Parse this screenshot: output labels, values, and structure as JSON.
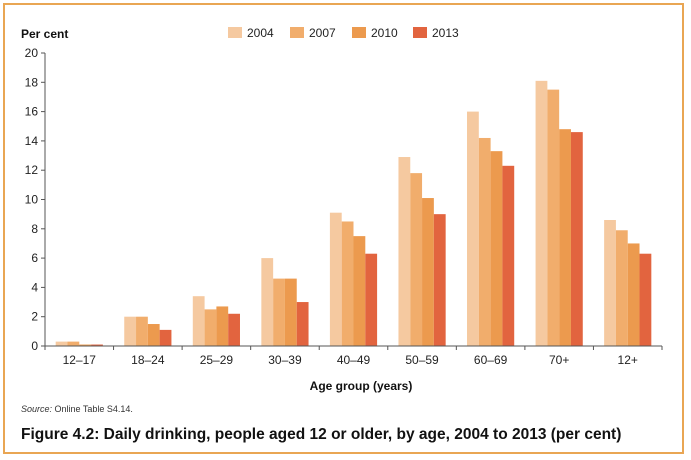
{
  "chart_data": {
    "type": "bar",
    "title": "Figure 4.2: Daily drinking, people aged 12 or older, by age, 2004 to 2013 (per cent)",
    "ylabel": "Per cent",
    "xlabel": "Age group (years)",
    "ylim": [
      0,
      20
    ],
    "yticks": [
      "0",
      "2",
      "4",
      "6",
      "8",
      "10",
      "12",
      "14",
      "16",
      "18",
      "20"
    ],
    "categories": [
      "12–17",
      "18–24",
      "25–29",
      "30–39",
      "40–49",
      "50–59",
      "60–69",
      "70+",
      "12+"
    ],
    "series": [
      {
        "name": "2004",
        "color": "#f5c9a0",
        "values": [
          0.3,
          2.0,
          3.4,
          6.0,
          9.1,
          12.9,
          16.0,
          18.1,
          8.6
        ]
      },
      {
        "name": "2007",
        "color": "#f1ad6c",
        "values": [
          0.3,
          2.0,
          2.5,
          4.6,
          8.5,
          11.8,
          14.2,
          17.5,
          7.9
        ]
      },
      {
        "name": "2010",
        "color": "#ec9a4e",
        "values": [
          0.1,
          1.5,
          2.7,
          4.6,
          7.5,
          10.1,
          13.3,
          14.8,
          7.0
        ]
      },
      {
        "name": "2013",
        "color": "#e2643f",
        "values": [
          0.1,
          1.1,
          2.2,
          3.0,
          6.3,
          9.0,
          12.3,
          14.6,
          6.3
        ]
      }
    ],
    "grid": false,
    "legend": "top"
  },
  "source": {
    "label": "Source:",
    "text": "Online Table S4.14."
  },
  "caption": "Figure 4.2: Daily drinking, people aged 12 or older, by age, 2004 to 2013 (per cent)",
  "colors": {
    "frame": "#e9a653",
    "axis": "#555555"
  }
}
